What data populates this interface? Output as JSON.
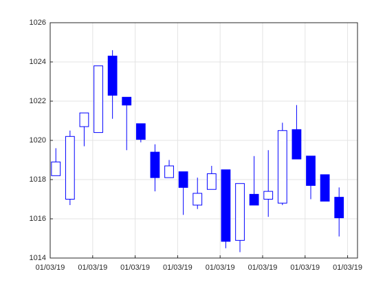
{
  "chart_data": {
    "type": "candlestick",
    "x": [
      1,
      2,
      3,
      4,
      5,
      6,
      7,
      8,
      9,
      10,
      11,
      12,
      13,
      14,
      15,
      16,
      17,
      18,
      19,
      20,
      21
    ],
    "open": [
      1018.2,
      1017.0,
      1020.7,
      1020.4,
      1024.3,
      1022.2,
      1020.85,
      1019.4,
      1018.1,
      1018.4,
      1016.7,
      1017.5,
      1018.5,
      1014.9,
      1017.25,
      1017.0,
      1016.8,
      1020.55,
      1019.2,
      1018.25,
      1017.1
    ],
    "high": [
      1019.6,
      1020.5,
      1021.4,
      1023.8,
      1024.6,
      1022.2,
      1020.85,
      1019.8,
      1019.0,
      1018.4,
      1018.1,
      1018.7,
      1018.5,
      1017.8,
      1019.2,
      1019.5,
      1020.9,
      1021.8,
      1019.2,
      1018.25,
      1017.6
    ],
    "low": [
      1018.2,
      1016.7,
      1019.7,
      1020.4,
      1021.1,
      1019.5,
      1019.9,
      1017.4,
      1018.1,
      1016.2,
      1016.5,
      1017.5,
      1014.5,
      1014.3,
      1016.7,
      1016.1,
      1016.7,
      1019.05,
      1017.0,
      1016.9,
      1015.1
    ],
    "close": [
      1018.9,
      1020.2,
      1021.4,
      1023.8,
      1022.3,
      1021.8,
      1020.05,
      1018.1,
      1018.7,
      1017.6,
      1017.3,
      1018.3,
      1014.85,
      1017.8,
      1016.7,
      1017.4,
      1020.5,
      1019.05,
      1017.7,
      1016.9,
      1016.05
    ],
    "color": "#0000ff",
    "xlim": [
      0.6,
      22.3
    ],
    "xticks": [
      {
        "value": 0.6,
        "label": "01/03/19"
      },
      {
        "value": 3.6,
        "label": "01/03/19"
      },
      {
        "value": 6.6,
        "label": "01/03/19"
      },
      {
        "value": 9.6,
        "label": "01/03/19"
      },
      {
        "value": 12.6,
        "label": "01/03/19"
      },
      {
        "value": 15.6,
        "label": "01/03/19"
      },
      {
        "value": 18.6,
        "label": "01/03/19"
      },
      {
        "value": 21.6,
        "label": "01/03/19"
      }
    ],
    "ylim": [
      1014,
      1026
    ],
    "yticks": [
      1014,
      1016,
      1018,
      1020,
      1022,
      1024,
      1026
    ],
    "grid": true
  }
}
